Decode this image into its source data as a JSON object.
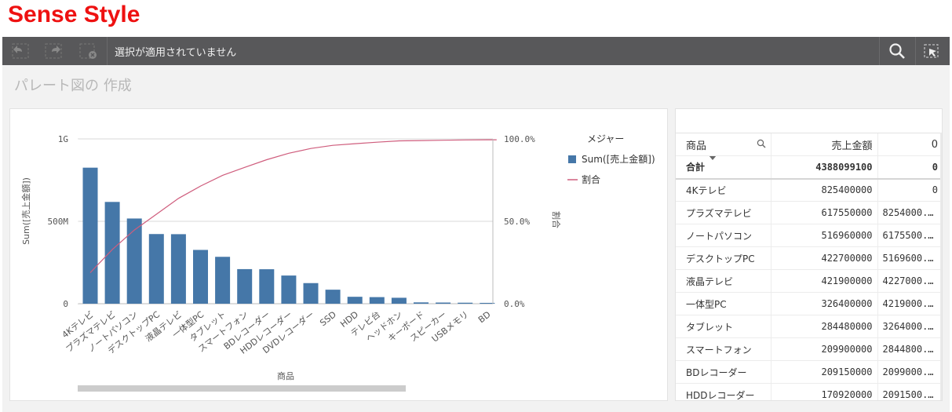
{
  "brand_title": "Sense Style",
  "toolbar": {
    "status_text": "選択が適用されていません",
    "buttons": [
      "back-icon",
      "forward-icon",
      "clear-selection-icon"
    ],
    "right_buttons": [
      "search-icon",
      "smart-search-icon"
    ]
  },
  "sheet": {
    "title": "パレート図の 作成"
  },
  "chart_data": {
    "type": "bar",
    "categories": [
      "4Kテレビ",
      "プラズマテレビ",
      "ノートパソコン",
      "デスクトップPC",
      "液晶テレビ",
      "一体型PC",
      "タブレット",
      "スマートフォン",
      "BDレコーダー",
      "HDDレコーダー",
      "DVDレコーダー",
      "SSD",
      "HDD",
      "テレビ台",
      "ヘッドホン",
      "キーボード",
      "スピーカー",
      "USBメモリ",
      "BD"
    ],
    "series": [
      {
        "name": "Sum([売上金額])",
        "type": "bar",
        "color": "#4577a8",
        "values": [
          825400000,
          617550000,
          516960000,
          422700000,
          421900000,
          326400000,
          284480000,
          209900000,
          209150000,
          170920000,
          125000000,
          85000000,
          42000000,
          40000000,
          36000000,
          8000000,
          7000000,
          6000000,
          5000000
        ]
      },
      {
        "name": "割合",
        "type": "line",
        "axis": "right",
        "color": "#cf5d7d",
        "values": [
          0.188,
          0.329,
          0.447,
          0.543,
          0.639,
          0.714,
          0.779,
          0.827,
          0.874,
          0.913,
          0.942,
          0.961,
          0.971,
          0.98,
          0.988,
          0.99,
          0.992,
          0.994,
          0.995
        ]
      }
    ],
    "xlabel": "商品",
    "ylabel": "Sum([売上金額])",
    "y2label": "割合",
    "ylim": [
      0,
      1000000000
    ],
    "y2lim": [
      0,
      1
    ],
    "yticks": [
      "0",
      "500M",
      "1G"
    ],
    "y2ticks": [
      "0.0%",
      "50.0%",
      "100.0%"
    ],
    "legend_title": "メジャー",
    "legend_position": "right",
    "grid": true
  },
  "table": {
    "headers": [
      "商品",
      "売上金額",
      "0"
    ],
    "totals": [
      "合計",
      "4388099100",
      "0"
    ],
    "rows": [
      [
        "4Kテレビ",
        "825400000",
        "0"
      ],
      [
        "プラズマテレビ",
        "617550000",
        "8254000..."
      ],
      [
        "ノートパソコン",
        "516960000",
        "6175500..."
      ],
      [
        "デスクトップPC",
        "422700000",
        "5169600..."
      ],
      [
        "液晶テレビ",
        "421900000",
        "4227000..."
      ],
      [
        "一体型PC",
        "326400000",
        "4219000..."
      ],
      [
        "タブレット",
        "284480000",
        "3264000..."
      ],
      [
        "スマートフォン",
        "209900000",
        "2844800..."
      ],
      [
        "BDレコーダー",
        "209150000",
        "2099000..."
      ],
      [
        "HDDレコーダー",
        "170920000",
        "2091500..."
      ]
    ]
  }
}
